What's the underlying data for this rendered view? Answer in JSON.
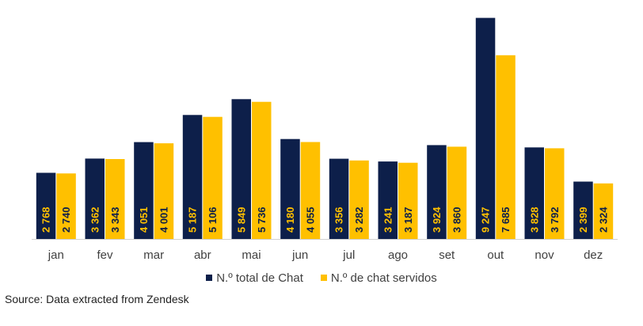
{
  "chart_data": {
    "type": "bar",
    "categories": [
      "jan",
      "fev",
      "mar",
      "abr",
      "mai",
      "jun",
      "jul",
      "ago",
      "set",
      "out",
      "nov",
      "dez"
    ],
    "series": [
      {
        "name": "N.º total de Chat",
        "color": "#0d1f4a",
        "values": [
          2768,
          3362,
          4051,
          5187,
          5849,
          4180,
          3356,
          3241,
          3924,
          9247,
          3828,
          2399
        ],
        "labels": [
          "2 768",
          "3 362",
          "4 051",
          "5 187",
          "5 849",
          "4 180",
          "3 356",
          "3 241",
          "3 924",
          "9 247",
          "3 828",
          "2 399"
        ],
        "label_color": "#ffc000"
      },
      {
        "name": "N.º de chat servidos",
        "color": "#ffc000",
        "values": [
          2740,
          3343,
          4001,
          5106,
          5736,
          4055,
          3282,
          3187,
          3860,
          7685,
          3792,
          2324
        ],
        "labels": [
          "2 740",
          "3 343",
          "4 001",
          "5 106",
          "5 736",
          "4 055",
          "3 282",
          "3 187",
          "3 860",
          "7 685",
          "3 792",
          "2 324"
        ],
        "label_color": "#0d1f4a"
      }
    ],
    "ylim": [
      0,
      9300
    ],
    "grid": false,
    "legend_position": "bottom",
    "axis_color": "#d0d0d0"
  },
  "source_text": "Source: Data extracted from Zendesk"
}
